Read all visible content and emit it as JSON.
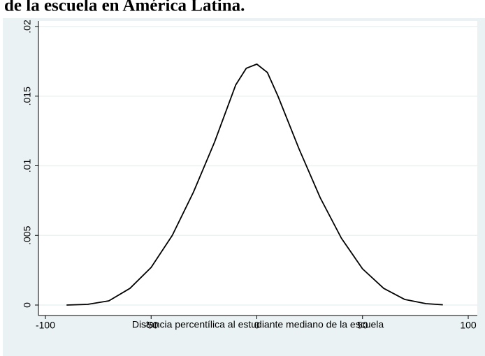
{
  "chart_data": {
    "type": "line",
    "title": "de la escuela en América Latina.",
    "xlabel": "Distancia percentílica al estudiante mediano de la escuela",
    "x": [
      -90,
      -80,
      -70,
      -60,
      -50,
      -40,
      -30,
      -20,
      -10,
      -5,
      0,
      5,
      10,
      20,
      30,
      40,
      50,
      60,
      70,
      80,
      88
    ],
    "series": [
      {
        "color": "#000000",
        "values": [
          0.0,
          5e-05,
          0.0003,
          0.0012,
          0.0027,
          0.005,
          0.0081,
          0.0117,
          0.0158,
          0.017,
          0.0173,
          0.0167,
          0.015,
          0.0112,
          0.0077,
          0.0048,
          0.0026,
          0.0012,
          0.0004,
          0.0001,
          2e-05
        ]
      }
    ],
    "xlim": [
      -100,
      100
    ],
    "xticks": [
      -100,
      -50,
      0,
      50,
      100
    ],
    "ylim": [
      0,
      0.02
    ],
    "yticks": [
      0,
      {
        "value": 0.005,
        "label": ".005"
      },
      {
        "value": 0.01,
        "label": ".01"
      },
      {
        "value": 0.015,
        "label": ".015"
      },
      {
        "value": 0.02,
        "label": ".02"
      }
    ],
    "grid": true
  }
}
